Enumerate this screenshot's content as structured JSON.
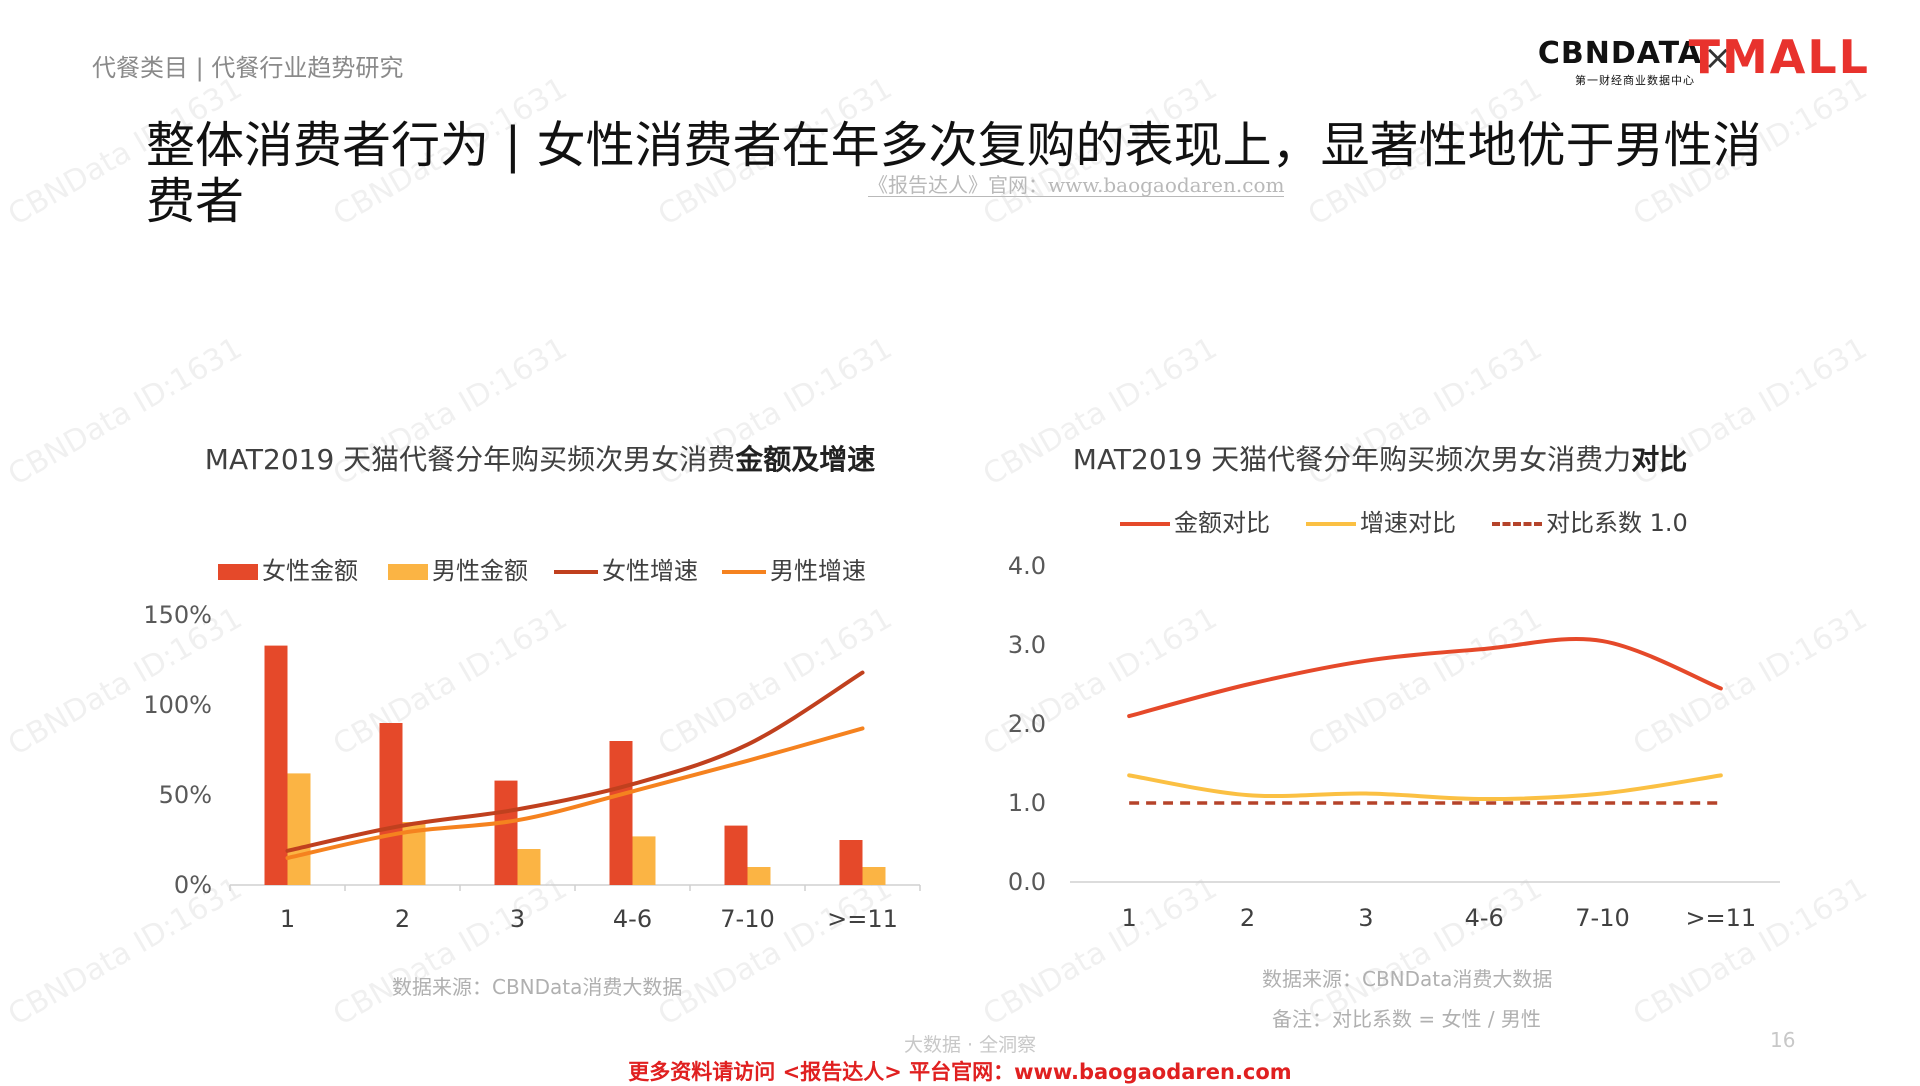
{
  "header": {
    "breadcrumb": "代餐类目 | 代餐行业趋势研究",
    "title": "整体消费者行为 | 女性消费者在年多次复购的表现上，显著性地优于男性消费者",
    "watermark_url": "《报告达人》官网：www.baogaodaren.com",
    "logo": {
      "brand1": "CBNDATA",
      "brand1_sub": "第一财经商业数据中心",
      "separator": "×",
      "brand2": "TMALL"
    }
  },
  "watermark_text": "CBNData ID:1631",
  "colors": {
    "female_amount": "#e5492a",
    "male_amount": "#fbb444",
    "female_growth": "#c0401e",
    "male_growth": "#f5821f",
    "amount_ratio": "#e5492a",
    "growth_ratio": "#fbc043",
    "baseline": "#b5432a"
  },
  "chart_data": [
    {
      "type": "bar",
      "title_plain": "MAT2019 天猫代餐分年购买频次男女消费",
      "title_bold": "金额及增速",
      "categories": [
        "1",
        "2",
        "3",
        "4-6",
        "7-10",
        ">=11"
      ],
      "series": [
        {
          "name": "女性金额",
          "kind": "bar",
          "values": [
            133,
            90,
            58,
            80,
            33,
            25
          ]
        },
        {
          "name": "男性金额",
          "kind": "bar",
          "values": [
            62,
            35,
            20,
            27,
            10,
            10
          ]
        },
        {
          "name": "女性增速",
          "kind": "line",
          "values": [
            19,
            33,
            42,
            56,
            78,
            118
          ]
        },
        {
          "name": "男性增速",
          "kind": "line",
          "values": [
            15,
            29,
            36,
            52,
            69,
            87
          ]
        }
      ],
      "ylim": [
        0,
        150
      ],
      "yticks": [
        "0%",
        "50%",
        "100%",
        "150%"
      ],
      "grid": false,
      "legend": "top",
      "source": "数据来源：CBNData消费大数据"
    },
    {
      "type": "line",
      "title_plain": "MAT2019 天猫代餐分年购买频次男女消费力",
      "title_bold": "对比",
      "categories": [
        "1",
        "2",
        "3",
        "4-6",
        "7-10",
        ">=11"
      ],
      "series": [
        {
          "name": "金额对比",
          "values": [
            2.1,
            2.5,
            2.8,
            2.95,
            3.05,
            2.45
          ]
        },
        {
          "name": "增速对比",
          "values": [
            1.35,
            1.1,
            1.12,
            1.05,
            1.12,
            1.35
          ]
        },
        {
          "name": "对比系数 1.0",
          "values": [
            1.0,
            1.0,
            1.0,
            1.0,
            1.0,
            1.0
          ],
          "dashed": true
        }
      ],
      "ylim": [
        0,
        4
      ],
      "yticks": [
        "0.0",
        "1.0",
        "2.0",
        "3.0",
        "4.0"
      ],
      "grid": false,
      "legend": "top",
      "source": "数据来源：CBNData消费大数据",
      "note": "备注：对比系数 = 女性 / 男性"
    }
  ],
  "footer": {
    "sub": "大数据 · 全洞察",
    "page_number": "16",
    "link": "更多资料请访问 <报告达人> 平台官网：www.baogaodaren.com"
  }
}
